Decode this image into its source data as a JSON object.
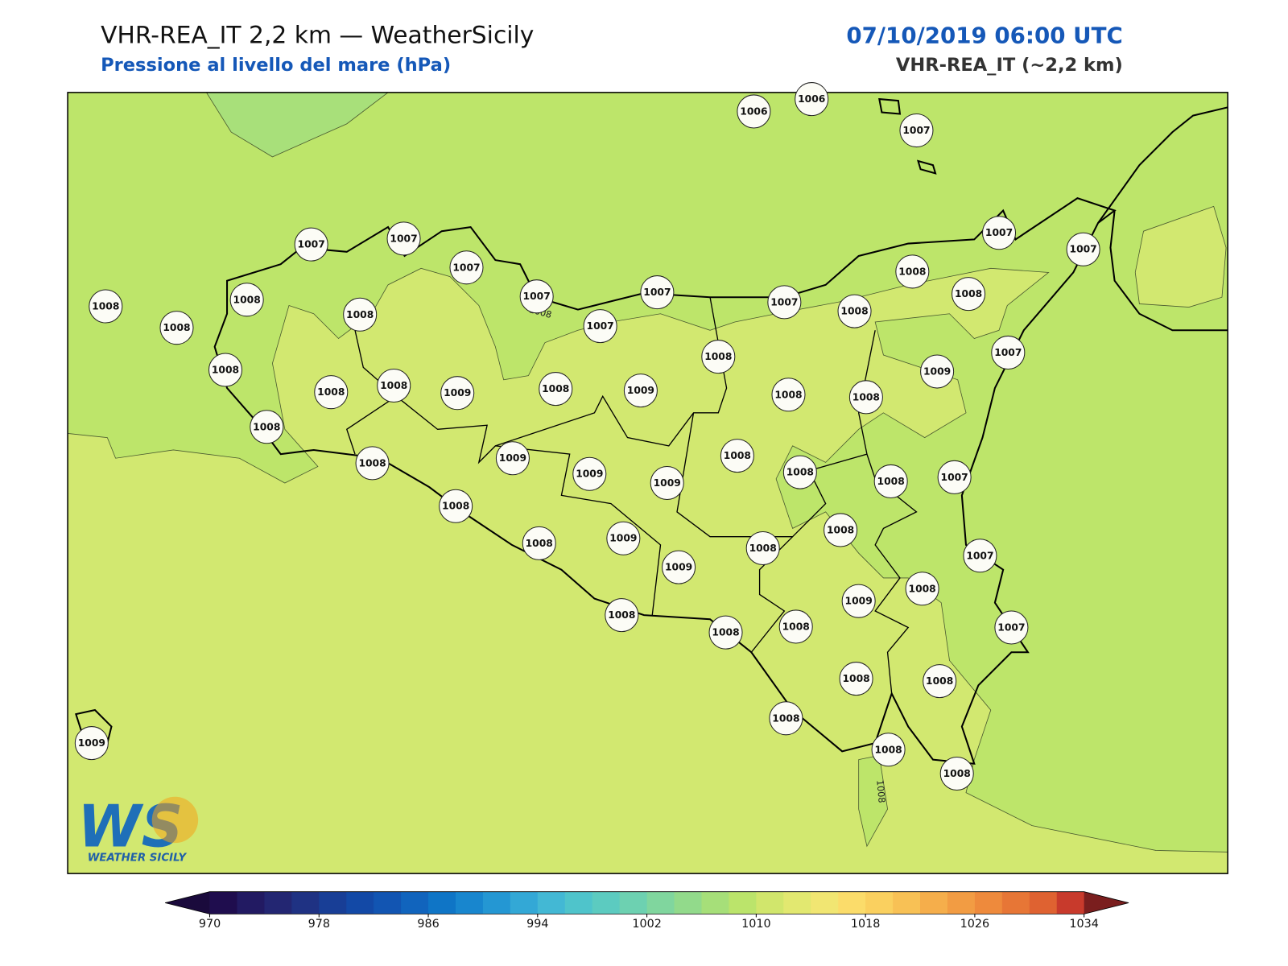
{
  "header": {
    "title": "VHR-REA_IT 2,2 km — WeatherSicily",
    "subtitle": "Pressione al livello del mare (hPa)",
    "datetime": "07/10/2019 06:00 UTC",
    "model": "VHR-REA_IT (~2,2 km)"
  },
  "stations": [
    "1006",
    "1006",
    "1007",
    "1007",
    "1007",
    "1007",
    "1007",
    "1007",
    "1007",
    "1007",
    "1007",
    "1007",
    "1008",
    "1008",
    "1008",
    "1007",
    "1008",
    "1008",
    "1008",
    "1008",
    "1008",
    "1008",
    "1008",
    "1009",
    "1008",
    "1009",
    "1008",
    "1008",
    "1008",
    "1009",
    "1008",
    "1008",
    "1009",
    "1009",
    "1009",
    "1008",
    "1008",
    "1008",
    "1007",
    "1008",
    "1008",
    "1009",
    "1009",
    "1008",
    "1008",
    "1007",
    "1009",
    "1008",
    "1008",
    "1008",
    "1008",
    "1007",
    "1008",
    "1008",
    "1008",
    "1008",
    "1008",
    "1009"
  ],
  "contour_labels": [
    "1008",
    "1008"
  ],
  "logo": {
    "mark": "WS",
    "text": "WEATHER SICILY"
  },
  "colorbar": {
    "range": [
      970,
      1034
    ],
    "ticks": [
      970,
      978,
      986,
      994,
      1002,
      1010,
      1018,
      1026,
      1034
    ],
    "colors": [
      "#1f0d4e",
      "#221a62",
      "#232672",
      "#1f3283",
      "#183e96",
      "#1349a6",
      "#1255b2",
      "#1164bd",
      "#0f75c6",
      "#1886ce",
      "#2497d3",
      "#33a8d6",
      "#43b8d4",
      "#4fc4cb",
      "#5ccbc0",
      "#6dd1b1",
      "#80d69e",
      "#92da8b",
      "#a6df79",
      "#bbe46b",
      "#d1e66c",
      "#e2e870",
      "#f1e672",
      "#fbdc6a",
      "#fad05f",
      "#f8c155",
      "#f5ae4b",
      "#f29c43",
      "#ee8a3c",
      "#e77636",
      "#df6231",
      "#c83a2c"
    ],
    "extend_colors": [
      "#1a0a3c",
      "#7a1e1e"
    ]
  }
}
